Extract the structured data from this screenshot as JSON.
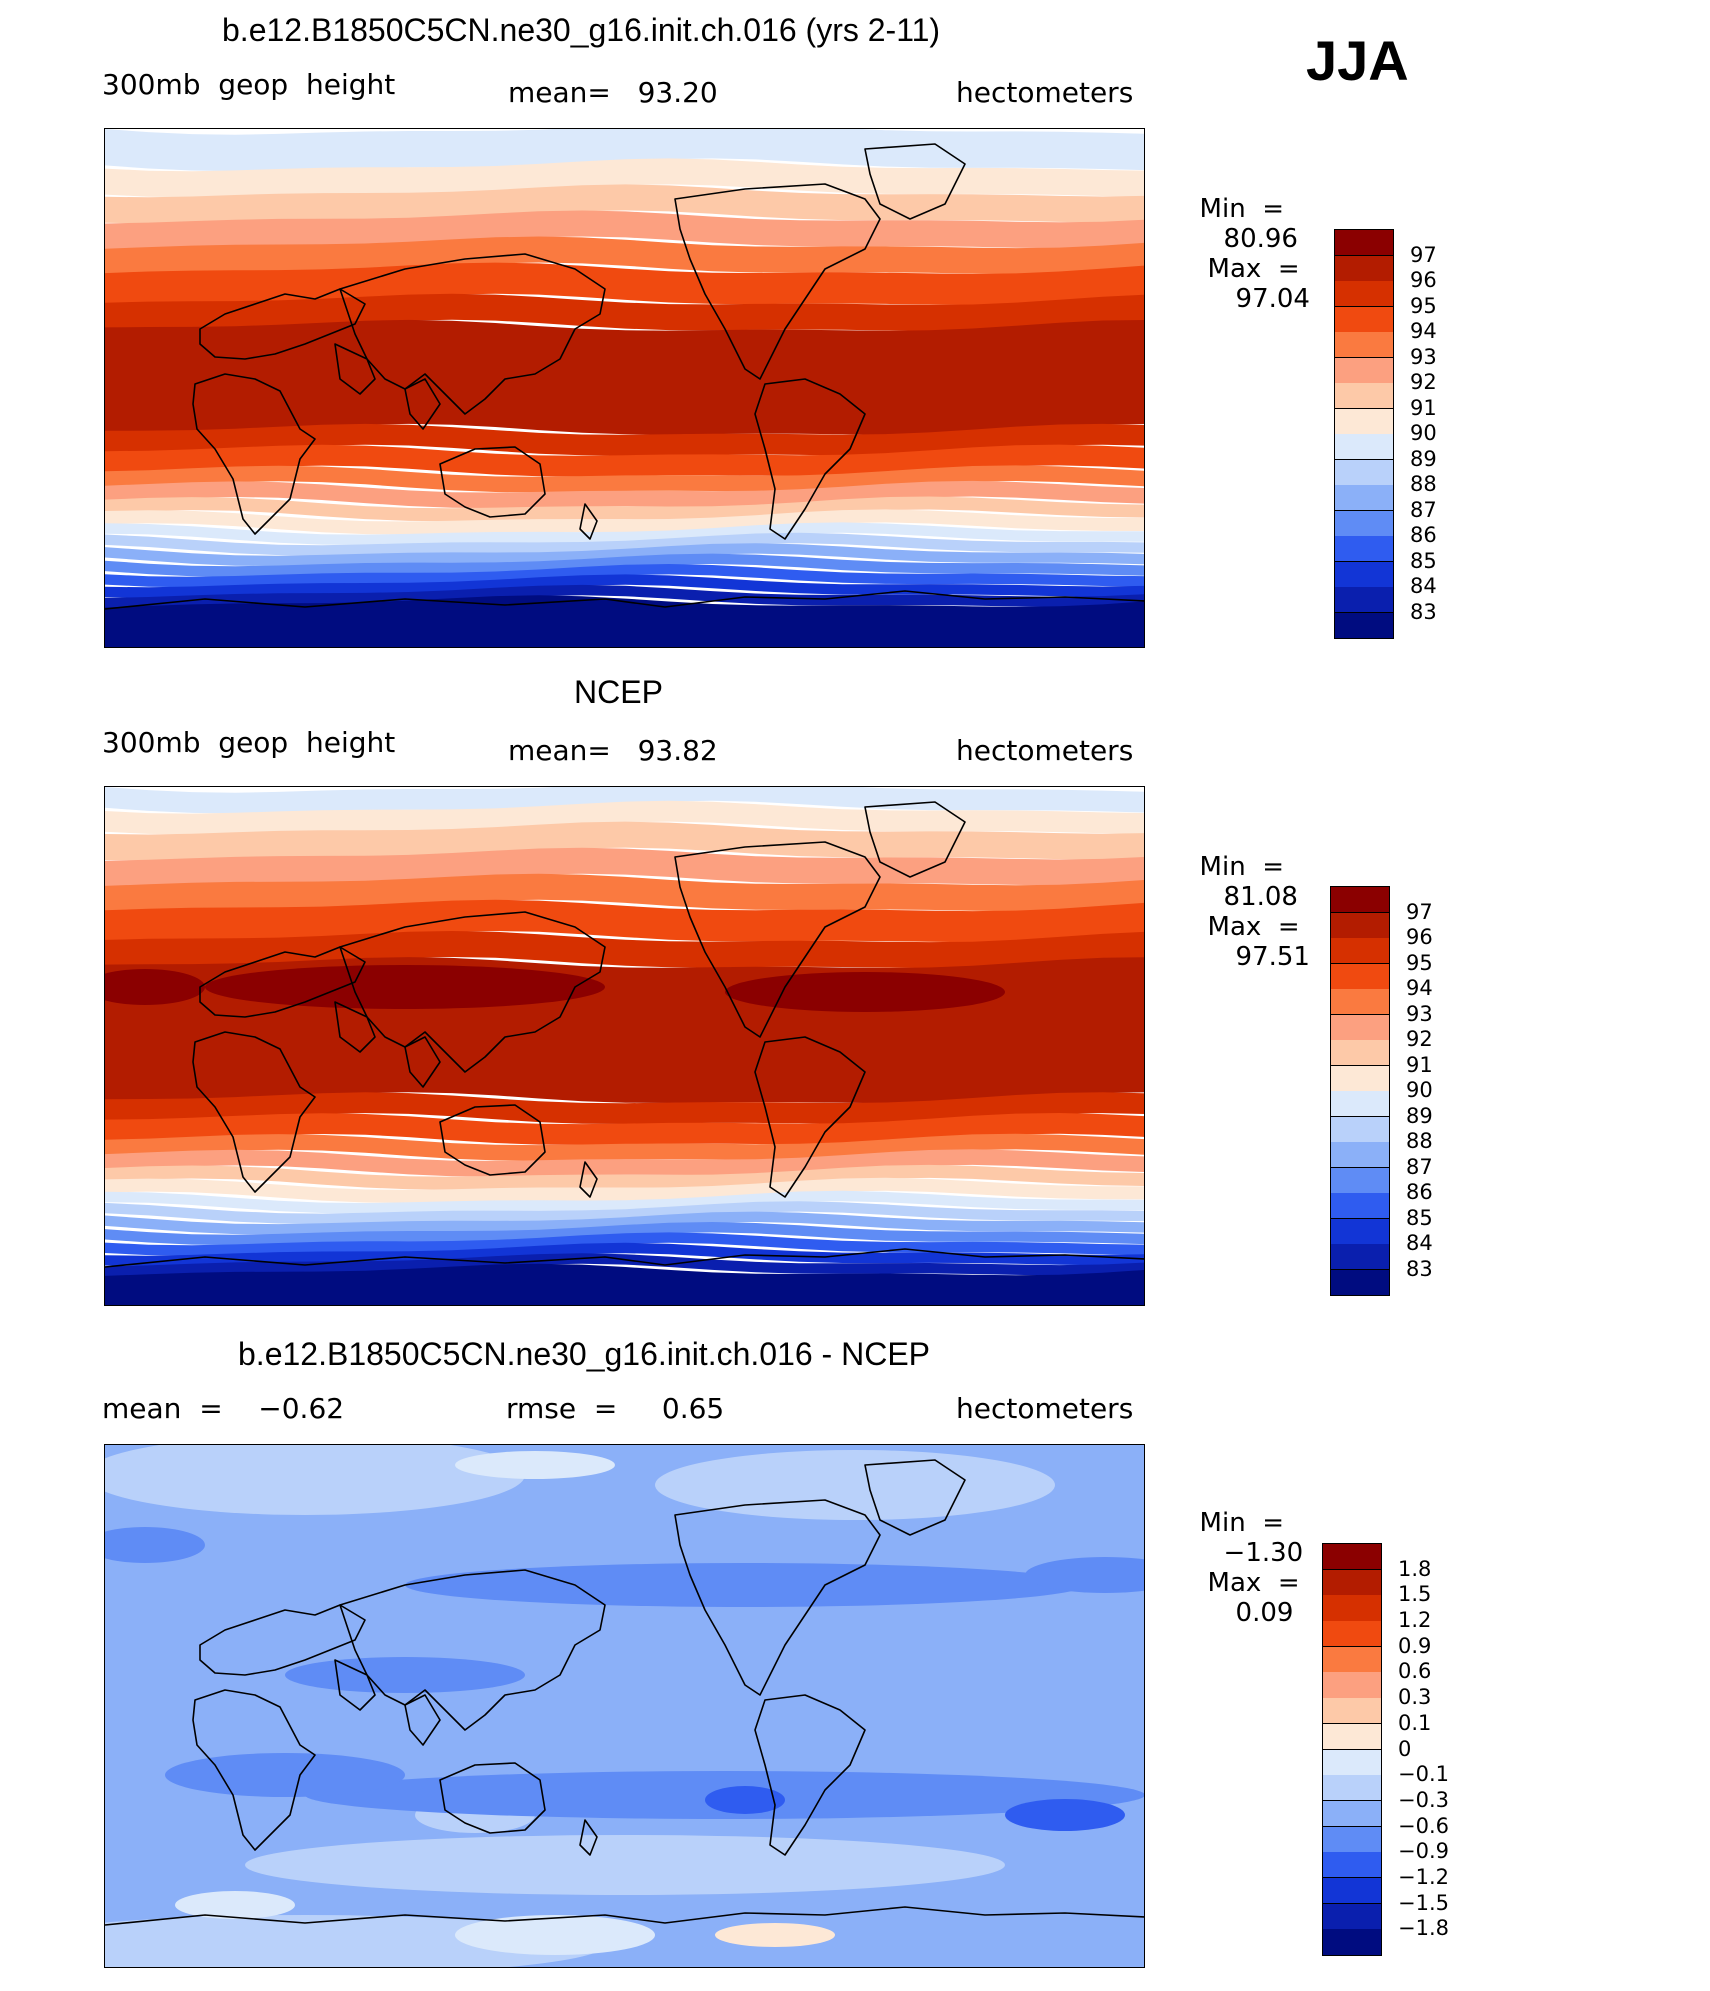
{
  "season_label": "JJA",
  "panels": [
    {
      "title": "b.e12.B1850C5CN.ne30_g16.init.ch.016 (yrs 2-11)",
      "left_label": "300mb  geop  height",
      "center_label": "mean=   93.20",
      "right_label": "hectometers",
      "min_label": "Min  =",
      "min_value": "80.96",
      "max_label": "Max  =",
      "max_value": "97.04",
      "field": "model"
    },
    {
      "title": "NCEP",
      "left_label": "300mb  geop  height",
      "center_label": "mean=   93.82",
      "right_label": "hectometers",
      "min_label": "Min  =",
      "min_value": "81.08",
      "max_label": "Max  =",
      "max_value": "97.51",
      "field": "obs"
    },
    {
      "title": "b.e12.B1850C5CN.ne30_g16.init.ch.016 - NCEP",
      "left_label": "mean  =    −0.62",
      "center_label": "rmse  =     0.65",
      "right_label": "hectometers",
      "min_label": "Min  =",
      "min_value": "−1.30",
      "max_label": "Max  =",
      "max_value": "0.09",
      "field": "diff"
    }
  ],
  "colorbars": {
    "height": {
      "labels": [
        "97",
        "96",
        "95",
        "94",
        "93",
        "92",
        "91",
        "90",
        "89",
        "88",
        "87",
        "86",
        "85",
        "84",
        "83"
      ],
      "colors": [
        "#8b0000",
        "#b31c00",
        "#d63000",
        "#f04a10",
        "#fa7a40",
        "#fca080",
        "#fdc9a8",
        "#fde8d6",
        "#dbe9fb",
        "#b9d1fa",
        "#8bb0f8",
        "#5f8cf5",
        "#2f5cf0",
        "#1235d6",
        "#0a1fae",
        "#000c80"
      ]
    },
    "difference": {
      "labels": [
        "1.8",
        "1.5",
        "1.2",
        "0.9",
        "0.6",
        "0.3",
        "0.1",
        "0",
        "−0.1",
        "−0.3",
        "−0.6",
        "−0.9",
        "−1.2",
        "−1.5",
        "−1.8"
      ],
      "colors": [
        "#8b0000",
        "#b31c00",
        "#d63000",
        "#f04a10",
        "#fa7a40",
        "#fca080",
        "#fdc9a8",
        "#fde8d6",
        "#dbe9fb",
        "#b9d1fa",
        "#8bb0f8",
        "#5f8cf5",
        "#2f5cf0",
        "#1235d6",
        "#0a1fae",
        "#000c80"
      ]
    }
  }
}
